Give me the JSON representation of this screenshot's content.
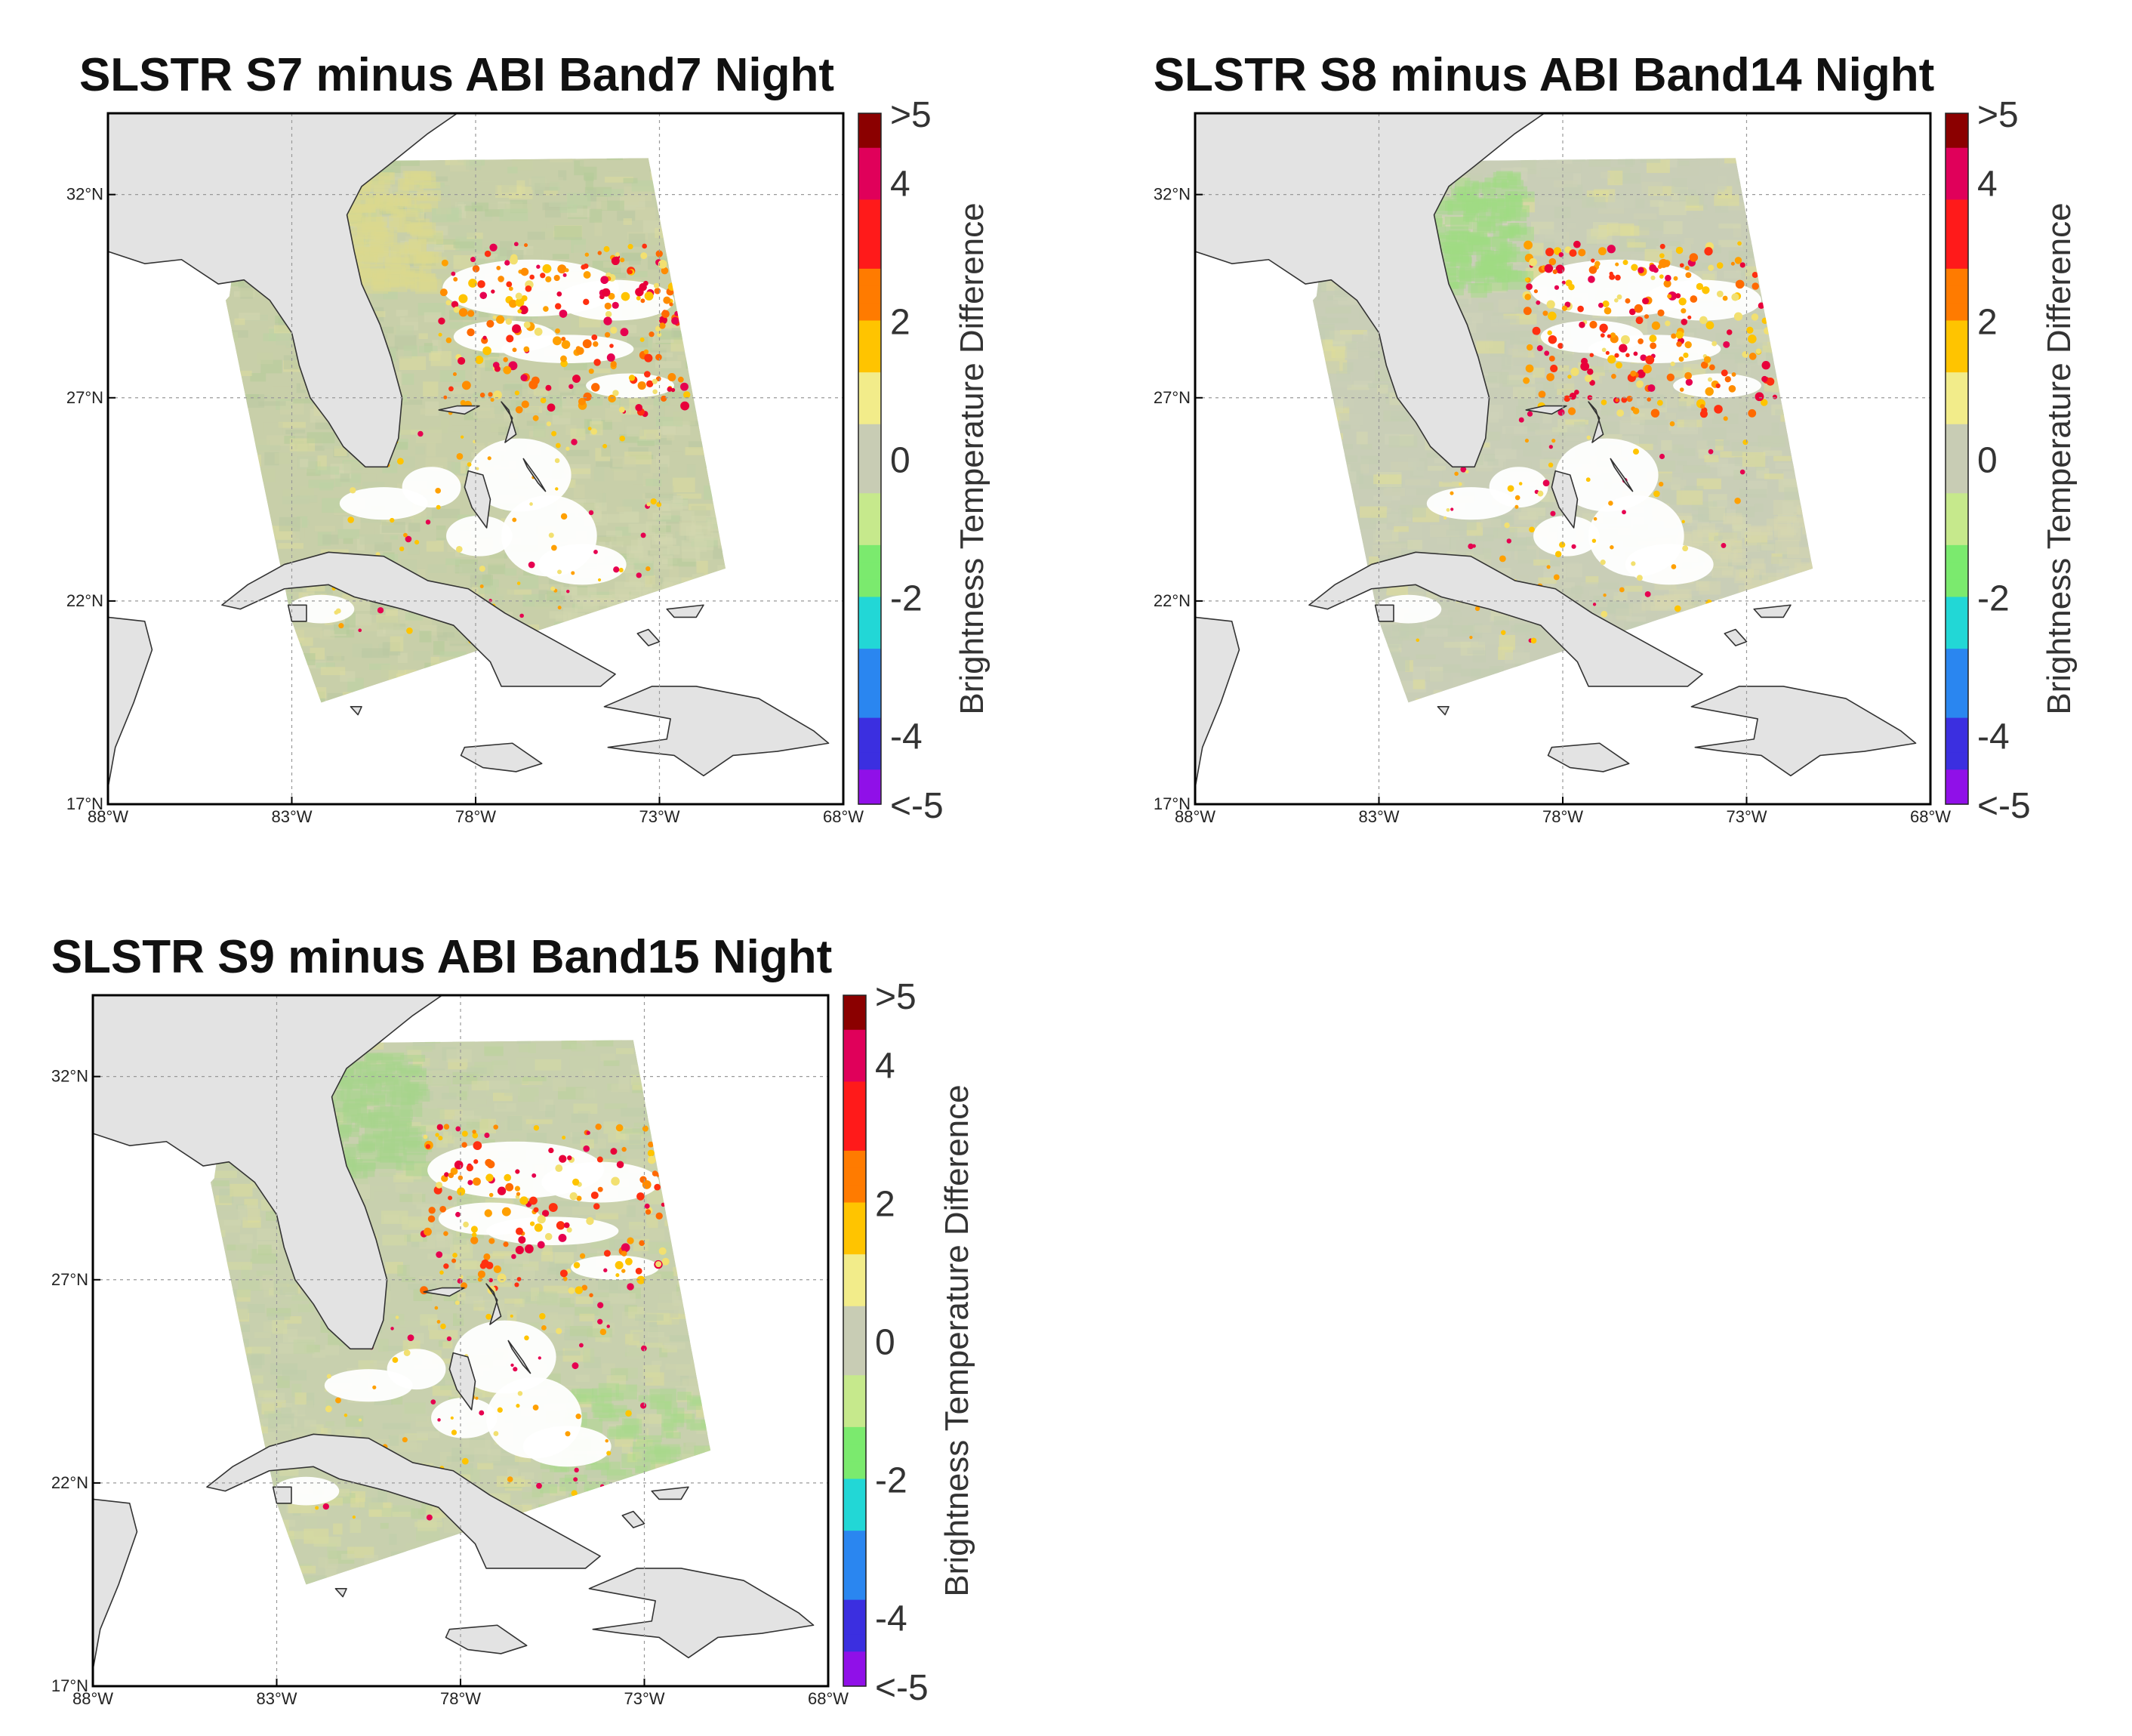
{
  "figure": {
    "colorbar": {
      "label": "Brightness Temperature Difference",
      "ticks": [
        ">5",
        "4",
        "2",
        "0",
        "-2",
        "-4",
        "<-5"
      ],
      "stops": [
        "#8b0000",
        "#e0005a",
        "#ff1a1a",
        "#ff7b00",
        "#ffc400",
        "#f2ec8a",
        "#c8ccb4",
        "#c6e98c",
        "#7bea6e",
        "#22d7d6",
        "#2a86f0",
        "#3b2fe0",
        "#9010e8"
      ]
    }
  },
  "chart_data": [
    {
      "type": "heatmap",
      "title": "SLSTR S7 minus ABI Band7 Night",
      "x_ticks": [
        "88°W",
        "83°W",
        "78°W",
        "73°W",
        "68°W"
      ],
      "y_ticks": [
        "17°N",
        "22°N",
        "27°N",
        "32°N"
      ],
      "xlim": [
        -88,
        -68
      ],
      "ylim": [
        17,
        34
      ],
      "colorbar_range": [
        -5,
        5
      ],
      "dominant_values": "mostly between -1 and 1 with scattered warm outliers 2 to >5"
    },
    {
      "type": "heatmap",
      "title": "SLSTR S8 minus ABI Band14 Night",
      "x_ticks": [
        "88°W",
        "83°W",
        "78°W",
        "73°W",
        "68°W"
      ],
      "y_ticks": [
        "17°N",
        "22°N",
        "27°N",
        "32°N"
      ],
      "xlim": [
        -88,
        -68
      ],
      "ylim": [
        17,
        34
      ],
      "colorbar_range": [
        -5,
        5
      ],
      "dominant_values": "mostly near 0 with scattered warm outliers 2 to >5"
    },
    {
      "type": "heatmap",
      "title": "SLSTR S9 minus ABI Band15 Night",
      "x_ticks": [
        "88°W",
        "83°W",
        "78°W",
        "73°W",
        "68°W"
      ],
      "y_ticks": [
        "17°N",
        "22°N",
        "27°N",
        "32°N"
      ],
      "xlim": [
        -88,
        -68
      ],
      "ylim": [
        17,
        34
      ],
      "colorbar_range": [
        -5,
        5
      ],
      "dominant_values": "mostly between -1 and 1 with scattered warm outliers 2 to 4"
    }
  ]
}
